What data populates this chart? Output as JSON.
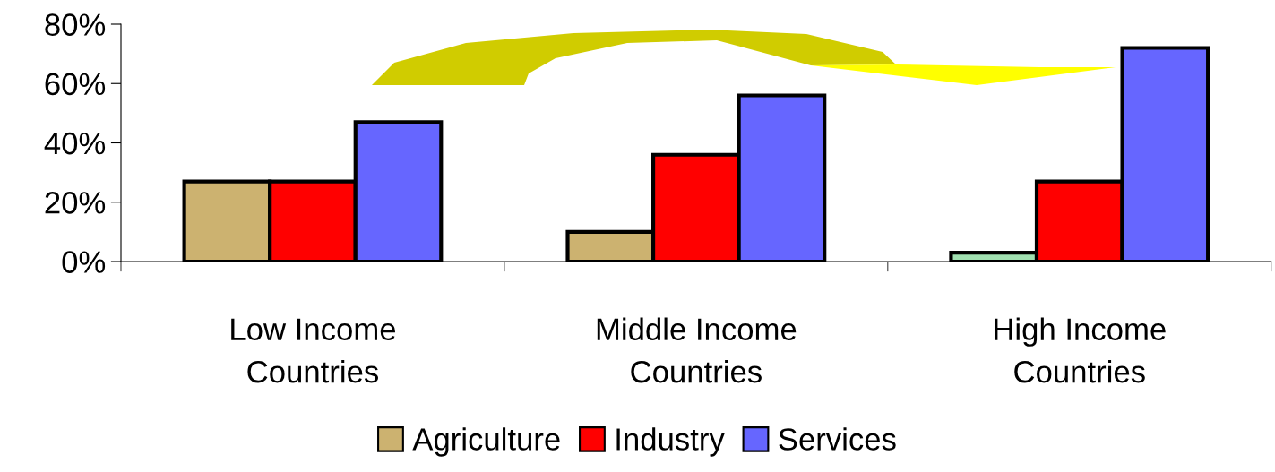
{
  "chart_data": {
    "type": "bar",
    "categories": [
      "Low Income\nCountries",
      "Middle Income\nCountries",
      "High Income\nCountries"
    ],
    "series": [
      {
        "name": "Agriculture",
        "color": "#ccb270",
        "colors": [
          "#ccb270",
          "#ccb270",
          "#a0e0b0"
        ],
        "values": [
          27,
          10,
          3
        ]
      },
      {
        "name": "Industry",
        "color": "#ff0000",
        "values": [
          27,
          36,
          27
        ]
      },
      {
        "name": "Services",
        "color": "#6666ff",
        "values": [
          47,
          56,
          72
        ]
      }
    ],
    "ylim": [
      0,
      80
    ],
    "yticks": [
      {
        "value": 0,
        "label": "0%"
      },
      {
        "value": 20,
        "label": "20%"
      },
      {
        "value": 40,
        "label": "40%"
      },
      {
        "value": 60,
        "label": "60%"
      },
      {
        "value": 80,
        "label": "80%"
      }
    ],
    "legend": "bottom",
    "grid": false
  }
}
